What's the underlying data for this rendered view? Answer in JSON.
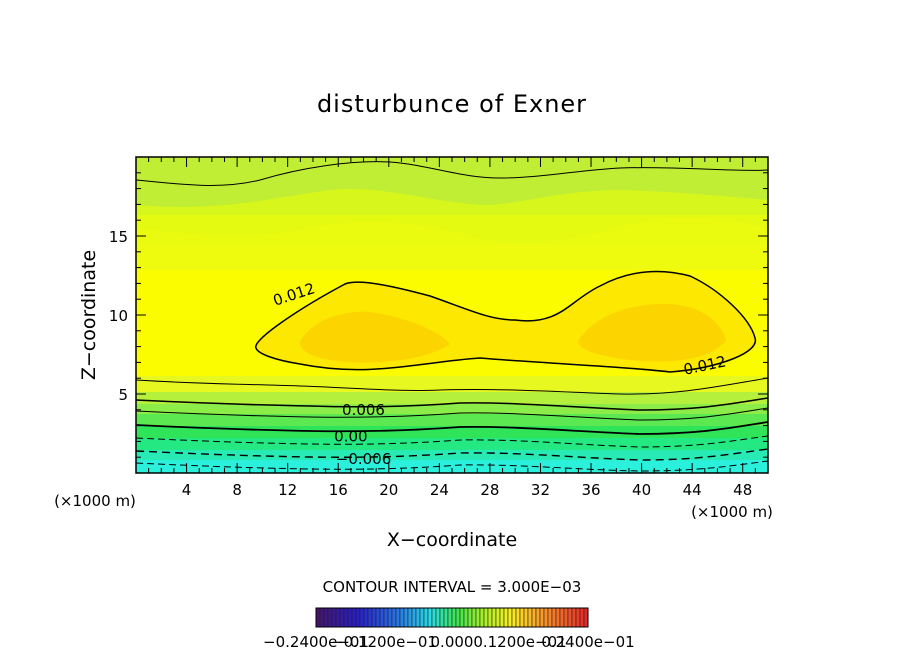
{
  "chart_data": {
    "type": "heatmap",
    "subtype": "filled-contour",
    "title": "disturbunce of Exner",
    "xlabel": "X−coordinate",
    "ylabel": "Z−coordinate",
    "x_unit_left": "(×1000 m)",
    "x_unit_right": "(×1000 m)",
    "xlim": [
      0,
      50
    ],
    "ylim": [
      0,
      20
    ],
    "x_ticks": [
      4,
      8,
      12,
      16,
      20,
      24,
      28,
      32,
      36,
      40,
      44,
      48
    ],
    "x_tick_labels": [
      "4",
      "8",
      "12",
      "16",
      "20",
      "24",
      "28",
      "32",
      "36",
      "40",
      "44",
      "48"
    ],
    "y_ticks": [
      5,
      10,
      15
    ],
    "y_tick_labels": [
      "5",
      "10",
      "15"
    ],
    "contour_interval_text": "CONTOUR INTERVAL = 3.000E−03",
    "contour_labels": [
      {
        "text": "0.012",
        "x": 12.5,
        "y": 11.3
      },
      {
        "text": "0.012",
        "x": 45.0,
        "y": 6.8
      },
      {
        "text": "0.006",
        "x": 18.0,
        "y": 4.0
      },
      {
        "text": "0.00",
        "x": 17.0,
        "y": 2.3
      },
      {
        "text": "−0.006",
        "x": 18.0,
        "y": 0.9
      }
    ],
    "colorbar_labels": [
      "−0.2400e−01",
      "−0.1200e−01",
      "0.000",
      "0.1200e−01",
      "0.2400e−01"
    ],
    "colorbar_range": [
      -0.024,
      0.024
    ],
    "max_value_approx": 0.016,
    "min_value_approx": -0.012
  }
}
